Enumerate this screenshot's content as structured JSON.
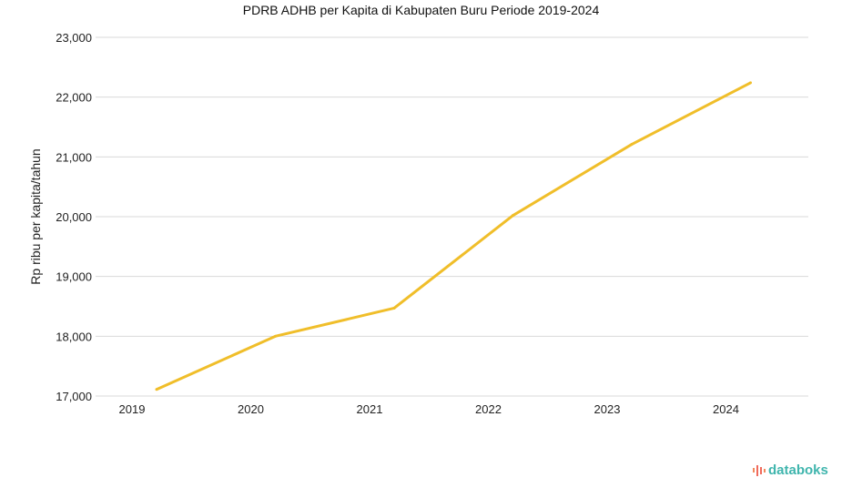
{
  "chart_data": {
    "type": "line",
    "title": "PDRB ADHB per Kapita di Kabupaten Buru Periode 2019-2024",
    "xlabel": "",
    "ylabel": "Rp ribu per kapita/tahun",
    "categories": [
      "2019",
      "2020",
      "2021",
      "2022",
      "2023",
      "2024"
    ],
    "values": [
      17110,
      18000,
      18470,
      20020,
      21210,
      22240
    ],
    "ylim": [
      17000,
      23000
    ],
    "yticks": [
      17000,
      18000,
      19000,
      20000,
      21000,
      22000,
      23000
    ],
    "ytick_labels": [
      "17,000",
      "18,000",
      "19,000",
      "20,000",
      "21,000",
      "22,000",
      "23,000"
    ],
    "grid": true,
    "line_color": "#f0be2a"
  },
  "logo": {
    "text": "databoks"
  }
}
